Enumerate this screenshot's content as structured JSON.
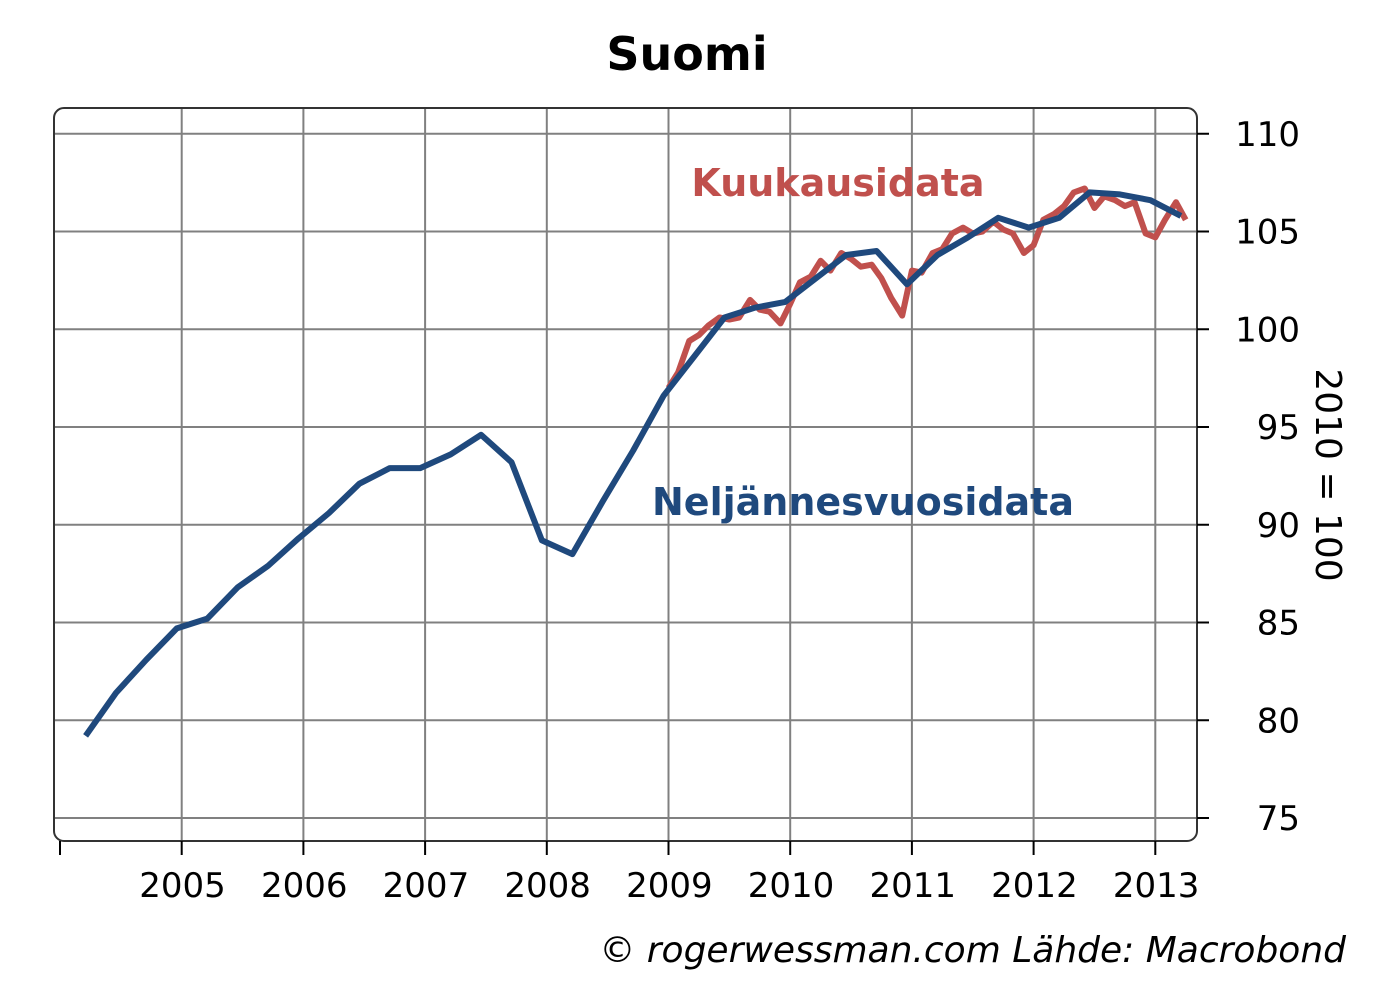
{
  "chart_data": {
    "type": "line",
    "title": "Suomi",
    "ylabel": "2010 = 100",
    "xlabel": "",
    "ylim": [
      74,
      111
    ],
    "xlim": [
      2004.0,
      2013.45
    ],
    "y_ticks": [
      75,
      80,
      85,
      90,
      95,
      100,
      105,
      110
    ],
    "x_tick_years": [
      2005,
      2006,
      2007,
      2008,
      2009,
      2010,
      2011,
      2012,
      2013
    ],
    "x_tick_labels": [
      "2005",
      "2006",
      "2007",
      "2008",
      "2009",
      "2010",
      "2011",
      "2012",
      "2013"
    ],
    "grid": true,
    "y_axis_side": "right",
    "series": [
      {
        "name": "Kuukausidata",
        "color": "#c0504d",
        "x": [
          2009.0,
          2009.08,
          2009.17,
          2009.25,
          2009.33,
          2009.42,
          2009.5,
          2009.58,
          2009.67,
          2009.75,
          2009.83,
          2009.92,
          2010.0,
          2010.08,
          2010.17,
          2010.25,
          2010.33,
          2010.42,
          2010.5,
          2010.58,
          2010.67,
          2010.75,
          2010.83,
          2010.92,
          2011.0,
          2011.08,
          2011.17,
          2011.25,
          2011.33,
          2011.42,
          2011.5,
          2011.58,
          2011.67,
          2011.75,
          2011.83,
          2011.92,
          2012.0,
          2012.08,
          2012.17,
          2012.25,
          2012.33,
          2012.42,
          2012.5,
          2012.58,
          2012.67,
          2012.75,
          2012.83,
          2012.92,
          2013.0,
          2013.08,
          2013.17,
          2013.25
        ],
        "values": [
          97.0,
          97.8,
          99.4,
          99.7,
          100.2,
          100.6,
          100.5,
          100.6,
          101.5,
          101.0,
          100.9,
          100.3,
          101.3,
          102.4,
          102.7,
          103.5,
          103.0,
          103.9,
          103.6,
          103.2,
          103.3,
          102.6,
          101.6,
          100.7,
          103.0,
          102.9,
          103.9,
          104.1,
          104.9,
          105.2,
          104.9,
          105.0,
          105.5,
          105.1,
          104.9,
          103.9,
          104.3,
          105.6,
          105.9,
          106.3,
          107.0,
          107.2,
          106.2,
          106.8,
          106.6,
          106.3,
          106.5,
          104.9,
          104.7,
          105.6,
          106.5,
          105.6
        ]
      },
      {
        "name": "Neljännesvuosidata",
        "color": "#1f497d",
        "x": [
          2004.21,
          2004.46,
          2004.71,
          2004.96,
          2005.21,
          2005.46,
          2005.71,
          2005.96,
          2006.21,
          2006.46,
          2006.71,
          2006.96,
          2007.21,
          2007.46,
          2007.71,
          2007.96,
          2008.21,
          2008.46,
          2008.71,
          2008.96,
          2009.21,
          2009.46,
          2009.71,
          2009.96,
          2010.21,
          2010.46,
          2010.71,
          2010.96,
          2011.21,
          2011.46,
          2011.71,
          2011.96,
          2012.21,
          2012.46,
          2012.71,
          2012.96,
          2013.21
        ],
        "values": [
          79.2,
          81.4,
          83.1,
          84.7,
          85.2,
          86.8,
          87.9,
          89.3,
          90.6,
          92.1,
          92.9,
          92.9,
          93.6,
          94.6,
          93.2,
          89.2,
          88.5,
          91.2,
          93.8,
          96.6,
          98.6,
          100.6,
          101.1,
          101.4,
          102.6,
          103.8,
          104.0,
          102.3,
          103.8,
          104.7,
          105.7,
          105.2,
          105.7,
          107.0,
          106.9,
          106.6,
          105.8
        ]
      }
    ],
    "annotations": [
      {
        "text": "Kuukausidata",
        "color": "#c0504d"
      },
      {
        "text": "Neljännesvuosidata",
        "color": "#1f497d"
      }
    ]
  },
  "credit": "© rogerwessman.com Lähde: Macrobond"
}
